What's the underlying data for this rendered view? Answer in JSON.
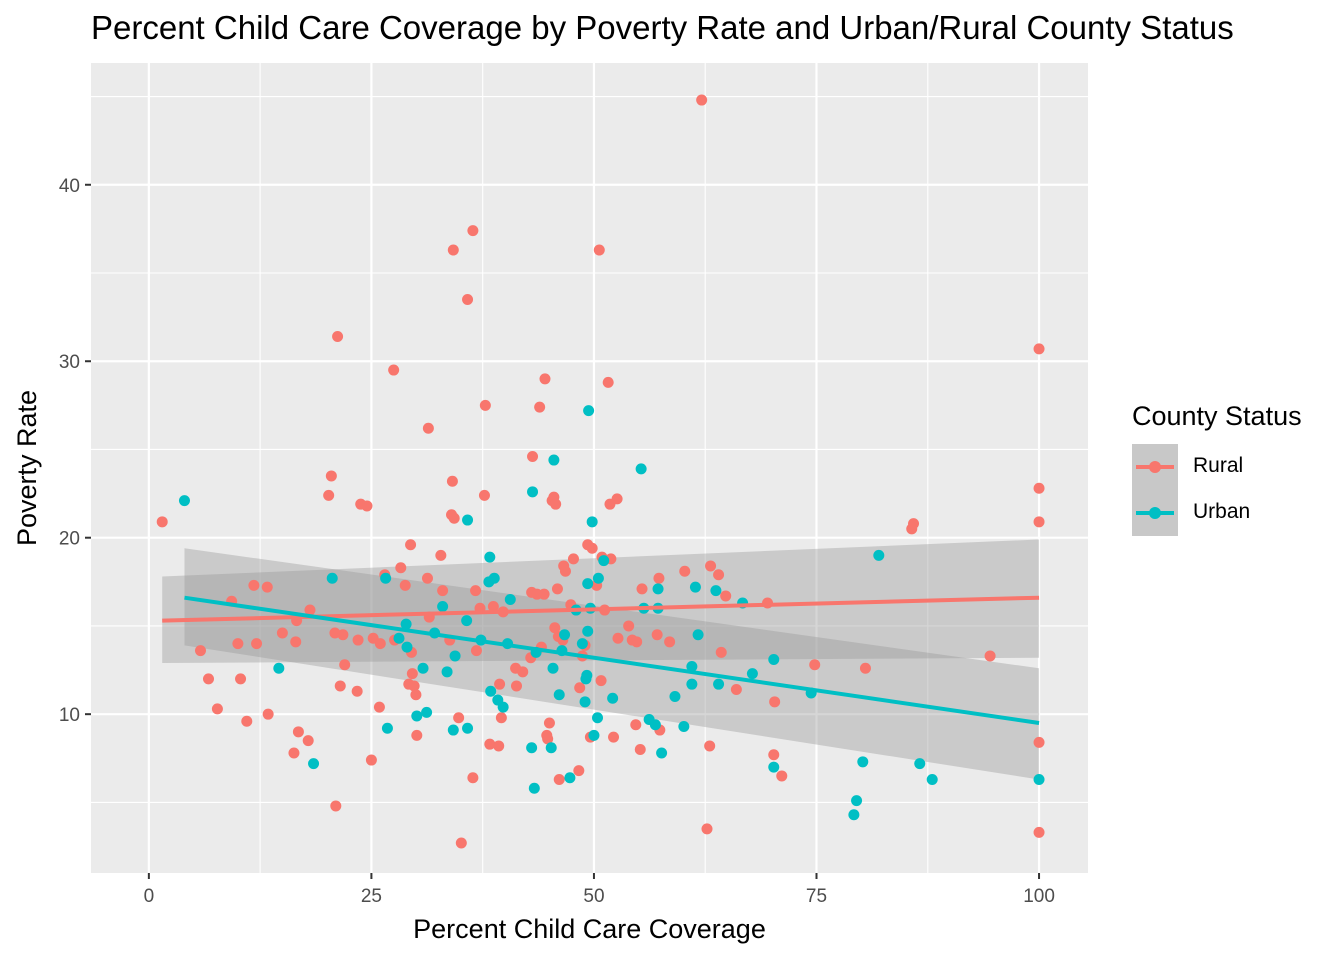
{
  "chart_data": {
    "type": "scatter",
    "title": "Percent Child Care Coverage by Poverty Rate and Urban/Rural County Status",
    "xlabel": "Percent Child Care Coverage",
    "ylabel": "Poverty Rate",
    "xlim": [
      -6.5,
      105.5
    ],
    "ylim": [
      1.0,
      46.9
    ],
    "x_ticks": [
      0,
      25,
      50,
      75,
      100
    ],
    "x_tick_labels": [
      "0",
      "25",
      "50",
      "75",
      "100"
    ],
    "y_ticks": [
      10,
      20,
      30,
      40
    ],
    "y_tick_labels": [
      "10",
      "20",
      "30",
      "40"
    ],
    "grid": true,
    "legend": {
      "title": "County Status",
      "position": "right"
    },
    "series": [
      {
        "name": "Rural",
        "color": "#f8766d",
        "fit": {
          "x": [
            1.5,
            100
          ],
          "y": [
            15.3,
            16.6
          ],
          "band_low": [
            12.9,
            13.2
          ],
          "band_high": [
            17.8,
            19.9
          ]
        },
        "points": [
          [
            1.5,
            20.9
          ],
          [
            5.8,
            13.6
          ],
          [
            6.7,
            12.0
          ],
          [
            7.7,
            10.3
          ],
          [
            9.3,
            16.4
          ],
          [
            10,
            14
          ],
          [
            10.3,
            12
          ],
          [
            11,
            9.6
          ],
          [
            11.8,
            17.3
          ],
          [
            12.1,
            14
          ],
          [
            13.3,
            17.2
          ],
          [
            13.4,
            10
          ],
          [
            15,
            14.6
          ],
          [
            16.3,
            7.8
          ],
          [
            16.5,
            14.1
          ],
          [
            16.6,
            15.3
          ],
          [
            16.8,
            9
          ],
          [
            17.9,
            8.5
          ],
          [
            18.1,
            15.9
          ],
          [
            20.2,
            22.4
          ],
          [
            20.5,
            23.5
          ],
          [
            20.9,
            14.6
          ],
          [
            21,
            4.8
          ],
          [
            21.2,
            31.4
          ],
          [
            21.5,
            11.6
          ],
          [
            21.8,
            14.5
          ],
          [
            22,
            12.8
          ],
          [
            23.4,
            11.3
          ],
          [
            23.5,
            14.2
          ],
          [
            23.8,
            21.9
          ],
          [
            24.5,
            21.8
          ],
          [
            25,
            7.4
          ],
          [
            25.2,
            14.3
          ],
          [
            25.9,
            10.4
          ],
          [
            26,
            14
          ],
          [
            26.5,
            17.9
          ],
          [
            27.5,
            29.5
          ],
          [
            27.6,
            14.2
          ],
          [
            28.3,
            18.3
          ],
          [
            28.8,
            17.3
          ],
          [
            29.2,
            11.7
          ],
          [
            29.4,
            19.6
          ],
          [
            29.5,
            13.5
          ],
          [
            29.6,
            12.3
          ],
          [
            29.8,
            11.6
          ],
          [
            30,
            11.1
          ],
          [
            30.1,
            8.8
          ],
          [
            31.3,
            17.7
          ],
          [
            31.4,
            26.2
          ],
          [
            31.5,
            15.5
          ],
          [
            32.8,
            19
          ],
          [
            33,
            17
          ],
          [
            33.8,
            14.2
          ],
          [
            34,
            21.3
          ],
          [
            34.1,
            23.2
          ],
          [
            34.2,
            36.3
          ],
          [
            34.3,
            21.1
          ],
          [
            34.8,
            9.8
          ],
          [
            35.1,
            2.7
          ],
          [
            35.8,
            33.5
          ],
          [
            36.4,
            37.4
          ],
          [
            36.4,
            6.4
          ],
          [
            36.7,
            17
          ],
          [
            36.8,
            13.6
          ],
          [
            37.2,
            16
          ],
          [
            37.7,
            22.4
          ],
          [
            37.8,
            27.5
          ],
          [
            38.3,
            8.3
          ],
          [
            38.7,
            16.1
          ],
          [
            39.3,
            8.2
          ],
          [
            39.4,
            11.7
          ],
          [
            39.6,
            9.8
          ],
          [
            39.8,
            15.8
          ],
          [
            41.2,
            12.6
          ],
          [
            41.3,
            11.6
          ],
          [
            42,
            12.4
          ],
          [
            42.9,
            13.2
          ],
          [
            43.0,
            16.9
          ],
          [
            43.1,
            24.6
          ],
          [
            43.6,
            16.8
          ],
          [
            43.9,
            27.4
          ],
          [
            44.1,
            13.8
          ],
          [
            44.4,
            16.8
          ],
          [
            44.5,
            29
          ],
          [
            44.7,
            8.8
          ],
          [
            44.8,
            8.6
          ],
          [
            45,
            9.5
          ],
          [
            45.3,
            22.1
          ],
          [
            45.5,
            22.3
          ],
          [
            45.6,
            14.9
          ],
          [
            45.7,
            21.9
          ],
          [
            45.9,
            17.1
          ],
          [
            46.0,
            14.4
          ],
          [
            46.1,
            6.3
          ],
          [
            46.5,
            14.2
          ],
          [
            46.6,
            18.4
          ],
          [
            46.8,
            18.1
          ],
          [
            47.4,
            16.2
          ],
          [
            47.7,
            18.8
          ],
          [
            48.3,
            6.8
          ],
          [
            48.4,
            11.5
          ],
          [
            48.7,
            13.3
          ],
          [
            49,
            13.9
          ],
          [
            49.3,
            19.6
          ],
          [
            49.6,
            8.7
          ],
          [
            49.8,
            19.4
          ],
          [
            50.3,
            17.3
          ],
          [
            50.6,
            36.3
          ],
          [
            50.8,
            11.9
          ],
          [
            50.9,
            18.9
          ],
          [
            51.2,
            15.9
          ],
          [
            51.6,
            28.8
          ],
          [
            51.8,
            21.9
          ],
          [
            51.9,
            18.8
          ],
          [
            52.2,
            8.7
          ],
          [
            52.6,
            22.2
          ],
          [
            52.7,
            14.3
          ],
          [
            53.9,
            15
          ],
          [
            54.3,
            14.2
          ],
          [
            54.7,
            9.4
          ],
          [
            54.8,
            14.1
          ],
          [
            55.2,
            8
          ],
          [
            55.4,
            17.1
          ],
          [
            57.1,
            14.5
          ],
          [
            57.3,
            17.7
          ],
          [
            57.4,
            9.1
          ],
          [
            58.5,
            14.1
          ],
          [
            60.2,
            18.1
          ],
          [
            62.1,
            44.8
          ],
          [
            62.7,
            3.5
          ],
          [
            63.0,
            8.2
          ],
          [
            63.1,
            18.4
          ],
          [
            64,
            17.9
          ],
          [
            64.3,
            13.5
          ],
          [
            64.8,
            16.7
          ],
          [
            66,
            11.4
          ],
          [
            69.5,
            16.3
          ],
          [
            70.2,
            7.7
          ],
          [
            70.3,
            10.7
          ],
          [
            71.1,
            6.5
          ],
          [
            74.8,
            12.8
          ],
          [
            80.5,
            12.6
          ],
          [
            85.7,
            20.5
          ],
          [
            85.9,
            20.8
          ],
          [
            94.5,
            13.3
          ],
          [
            100,
            30.7
          ],
          [
            100,
            22.8
          ],
          [
            100,
            20.9
          ],
          [
            100,
            8.4
          ],
          [
            100,
            3.3
          ]
        ]
      },
      {
        "name": "Urban",
        "color": "#00bfc4",
        "fit": {
          "x": [
            4,
            100
          ],
          "y": [
            16.6,
            9.5
          ],
          "band_low": [
            13.9,
            6.3
          ],
          "band_high": [
            19.4,
            12.6
          ]
        },
        "points": [
          [
            4,
            22.1
          ],
          [
            14.6,
            12.6
          ],
          [
            18.5,
            7.2
          ],
          [
            20.6,
            17.7
          ],
          [
            26.6,
            17.7
          ],
          [
            26.8,
            9.2
          ],
          [
            28.1,
            14.3
          ],
          [
            28.9,
            15.1
          ],
          [
            29,
            13.8
          ],
          [
            30.1,
            9.9
          ],
          [
            30.8,
            12.6
          ],
          [
            31.2,
            10.1
          ],
          [
            32.1,
            14.6
          ],
          [
            33.0,
            16.1
          ],
          [
            33.5,
            12.4
          ],
          [
            34.2,
            9.1
          ],
          [
            34.4,
            13.3
          ],
          [
            35.7,
            15.3
          ],
          [
            35.8,
            21
          ],
          [
            35.8,
            9.2
          ],
          [
            37.3,
            14.2
          ],
          [
            38.2,
            17.5
          ],
          [
            38.3,
            18.9
          ],
          [
            38.4,
            11.3
          ],
          [
            38.8,
            17.7
          ],
          [
            39.2,
            10.8
          ],
          [
            39.8,
            10.4
          ],
          [
            40.3,
            14
          ],
          [
            40.6,
            16.5
          ],
          [
            43,
            8.1
          ],
          [
            43.1,
            22.6
          ],
          [
            43.3,
            5.8
          ],
          [
            43.5,
            13.5
          ],
          [
            45.2,
            8.1
          ],
          [
            45.4,
            12.6
          ],
          [
            45.5,
            24.4
          ],
          [
            46.1,
            11.1
          ],
          [
            46.4,
            13.6
          ],
          [
            46.7,
            14.5
          ],
          [
            47.3,
            6.4
          ],
          [
            48,
            15.9
          ],
          [
            48.7,
            14
          ],
          [
            49.0,
            10.7
          ],
          [
            49.1,
            12
          ],
          [
            49.2,
            12.2
          ],
          [
            49.3,
            14.7
          ],
          [
            49.3,
            17.4
          ],
          [
            49.4,
            27.2
          ],
          [
            49.6,
            16
          ],
          [
            49.8,
            20.9
          ],
          [
            50.0,
            8.8
          ],
          [
            50.4,
            9.8
          ],
          [
            50.5,
            17.7
          ],
          [
            51.1,
            18.7
          ],
          [
            52.1,
            10.9
          ],
          [
            55.3,
            23.9
          ],
          [
            55.6,
            16
          ],
          [
            56.2,
            9.7
          ],
          [
            56.9,
            9.4
          ],
          [
            57.2,
            17.1
          ],
          [
            57.2,
            16
          ],
          [
            57.6,
            7.8
          ],
          [
            59.1,
            11
          ],
          [
            60.1,
            9.3
          ],
          [
            61.0,
            12.7
          ],
          [
            61.0,
            11.7
          ],
          [
            61.4,
            17.2
          ],
          [
            61.7,
            14.5
          ],
          [
            63.7,
            17
          ],
          [
            64.0,
            11.7
          ],
          [
            66.7,
            16.3
          ],
          [
            67.8,
            12.3
          ],
          [
            70.2,
            13.1
          ],
          [
            70.2,
            7
          ],
          [
            74.4,
            11.2
          ],
          [
            79.2,
            4.3
          ],
          [
            79.5,
            5.1
          ],
          [
            80.2,
            7.3
          ],
          [
            82.0,
            19
          ],
          [
            86.6,
            7.2
          ],
          [
            88,
            6.3
          ],
          [
            100,
            6.3
          ]
        ]
      }
    ]
  }
}
